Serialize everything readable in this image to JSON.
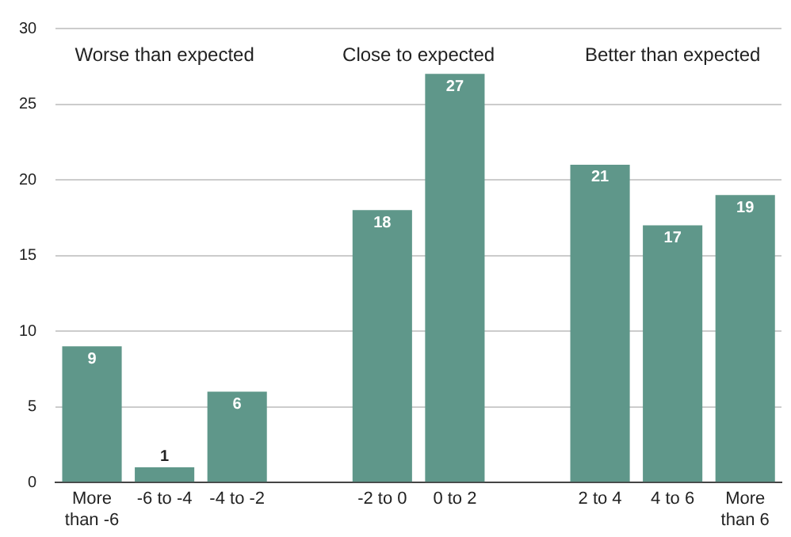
{
  "chart_data": {
    "type": "bar",
    "categories": [
      "More than -6",
      "-6 to -4",
      "-4 to -2",
      null,
      "-2 to 0",
      "0 to 2",
      null,
      "2 to 4",
      "4 to 6",
      "More than 6"
    ],
    "values": [
      9,
      1,
      6,
      null,
      18,
      27,
      null,
      21,
      17,
      19
    ],
    "color": "#5f978a",
    "ylim": [
      0,
      30
    ],
    "yticks": [
      0,
      5,
      10,
      15,
      20,
      25,
      30
    ],
    "grid": "y",
    "data_labels": true,
    "annotations": [
      "Worse than expected",
      "Close to expected",
      "Better than expected"
    ]
  }
}
